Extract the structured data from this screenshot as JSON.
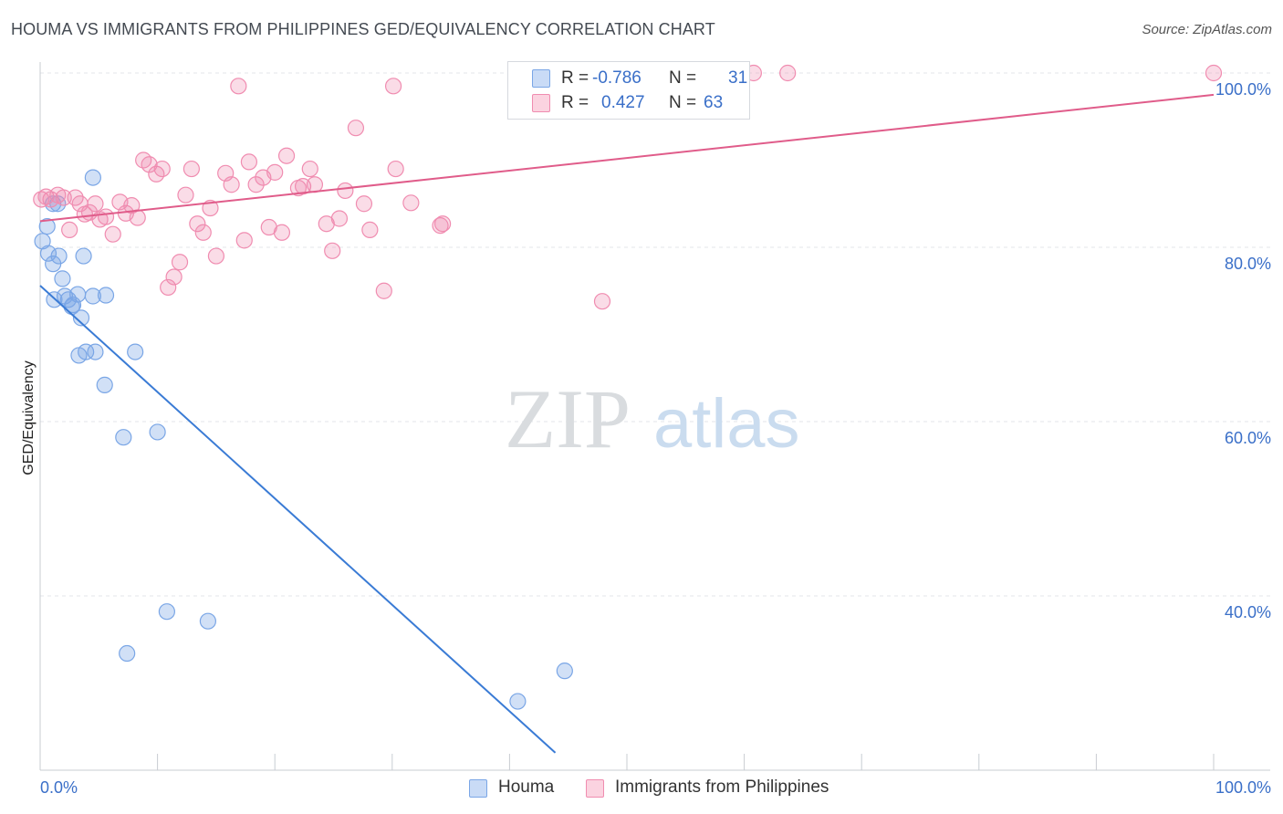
{
  "title": "HOUMA VS IMMIGRANTS FROM PHILIPPINES GED/EQUIVALENCY CORRELATION CHART",
  "source": "Source: ZipAtlas.com",
  "watermark": {
    "zip": "ZIP",
    "atlas": "atlas"
  },
  "legend": {
    "rows": [
      {
        "r_label": "R =",
        "r_value": "-0.786",
        "n_label": "N =",
        "n_value": "31",
        "color": "#7aa6e6"
      },
      {
        "r_label": "R =",
        "r_value": "0.427",
        "n_label": "N =",
        "n_value": "63",
        "color": "#f08cb0"
      }
    ]
  },
  "bottom_legend": [
    {
      "label": "Houma",
      "color": "#7aa6e6"
    },
    {
      "label": "Immigrants from Philippines",
      "color": "#f08cb0"
    }
  ],
  "colors": {
    "blue": "#3a7bd5",
    "pink": "#e05c8a",
    "axis_label": "#3a6fc8",
    "grid": "#e3e6ea"
  },
  "chart_data": {
    "type": "scatter",
    "title": "HOUMA VS IMMIGRANTS FROM PHILIPPINES GED/EQUIVALENCY CORRELATION CHART",
    "xlabel": "",
    "ylabel": "GED/Equivalency",
    "xlim": [
      0,
      100
    ],
    "ylim": [
      20,
      100
    ],
    "x_tick_labels": [
      "0.0%",
      "100.0%"
    ],
    "y_ticks": [
      40,
      60,
      80,
      100
    ],
    "y_tick_labels": [
      "40.0%",
      "60.0%",
      "80.0%",
      "100.0%"
    ],
    "grid": true,
    "legend_position": "top-center",
    "series": [
      {
        "name": "Houma",
        "color": "#7aa6e6",
        "trend": {
          "x": [
            0,
            43.9
          ],
          "y": [
            75.6,
            22.0
          ]
        },
        "points": [
          [
            0.2,
            80.7
          ],
          [
            0.6,
            82.4
          ],
          [
            0.7,
            79.3
          ],
          [
            1.1,
            78.1
          ],
          [
            1.5,
            85.0
          ],
          [
            1.6,
            79.0
          ],
          [
            1.9,
            76.4
          ],
          [
            2.1,
            74.4
          ],
          [
            1.2,
            74.0
          ],
          [
            2.4,
            74.0
          ],
          [
            2.7,
            73.2
          ],
          [
            2.8,
            73.4
          ],
          [
            3.2,
            74.6
          ],
          [
            3.5,
            71.9
          ],
          [
            3.7,
            79.0
          ],
          [
            3.3,
            67.6
          ],
          [
            3.9,
            68.0
          ],
          [
            4.5,
            74.4
          ],
          [
            4.7,
            68.0
          ],
          [
            5.6,
            74.5
          ],
          [
            4.5,
            88.0
          ],
          [
            5.5,
            64.2
          ],
          [
            8.1,
            68.0
          ],
          [
            7.1,
            58.2
          ],
          [
            10.0,
            58.8
          ],
          [
            10.8,
            38.2
          ],
          [
            14.3,
            37.1
          ],
          [
            7.4,
            33.4
          ],
          [
            40.7,
            27.9
          ],
          [
            44.7,
            31.4
          ],
          [
            1.1,
            85.0
          ]
        ]
      },
      {
        "name": "Immigrants from Philippines",
        "color": "#f08cb0",
        "trend": {
          "x": [
            0,
            100
          ],
          "y": [
            83.0,
            97.5
          ]
        },
        "points": [
          [
            0.5,
            85.8
          ],
          [
            0.9,
            85.5
          ],
          [
            1.5,
            86.0
          ],
          [
            2.0,
            85.7
          ],
          [
            2.5,
            82.0
          ],
          [
            3.0,
            85.7
          ],
          [
            3.4,
            85.0
          ],
          [
            3.8,
            83.8
          ],
          [
            4.2,
            84.0
          ],
          [
            4.7,
            85.0
          ],
          [
            5.1,
            83.2
          ],
          [
            5.6,
            83.5
          ],
          [
            6.2,
            81.5
          ],
          [
            6.8,
            85.2
          ],
          [
            7.3,
            83.9
          ],
          [
            7.8,
            84.8
          ],
          [
            8.3,
            83.4
          ],
          [
            8.8,
            90.0
          ],
          [
            9.3,
            89.5
          ],
          [
            9.9,
            88.4
          ],
          [
            10.4,
            89.0
          ],
          [
            10.9,
            75.4
          ],
          [
            11.4,
            76.6
          ],
          [
            11.9,
            78.3
          ],
          [
            12.4,
            86.0
          ],
          [
            12.9,
            89.0
          ],
          [
            13.4,
            82.7
          ],
          [
            13.9,
            81.7
          ],
          [
            14.5,
            84.5
          ],
          [
            15.0,
            79.0
          ],
          [
            15.8,
            88.5
          ],
          [
            16.3,
            87.2
          ],
          [
            16.9,
            98.5
          ],
          [
            17.4,
            80.8
          ],
          [
            17.8,
            89.8
          ],
          [
            18.4,
            87.2
          ],
          [
            19.0,
            88.0
          ],
          [
            19.5,
            82.3
          ],
          [
            20.0,
            88.6
          ],
          [
            20.6,
            81.7
          ],
          [
            21.0,
            90.5
          ],
          [
            22.0,
            86.8
          ],
          [
            22.4,
            87.0
          ],
          [
            23.0,
            89.0
          ],
          [
            23.4,
            87.2
          ],
          [
            24.4,
            82.7
          ],
          [
            24.9,
            79.6
          ],
          [
            25.5,
            83.3
          ],
          [
            26.0,
            86.5
          ],
          [
            26.9,
            93.7
          ],
          [
            27.6,
            85.0
          ],
          [
            28.1,
            82.0
          ],
          [
            29.3,
            75.0
          ],
          [
            30.1,
            98.5
          ],
          [
            30.3,
            89.0
          ],
          [
            31.6,
            85.1
          ],
          [
            34.1,
            82.5
          ],
          [
            34.3,
            82.7
          ],
          [
            47.9,
            73.8
          ],
          [
            60.8,
            100.0
          ],
          [
            63.7,
            100.0
          ],
          [
            100.0,
            100.0
          ],
          [
            0.1,
            85.5
          ]
        ]
      }
    ]
  }
}
